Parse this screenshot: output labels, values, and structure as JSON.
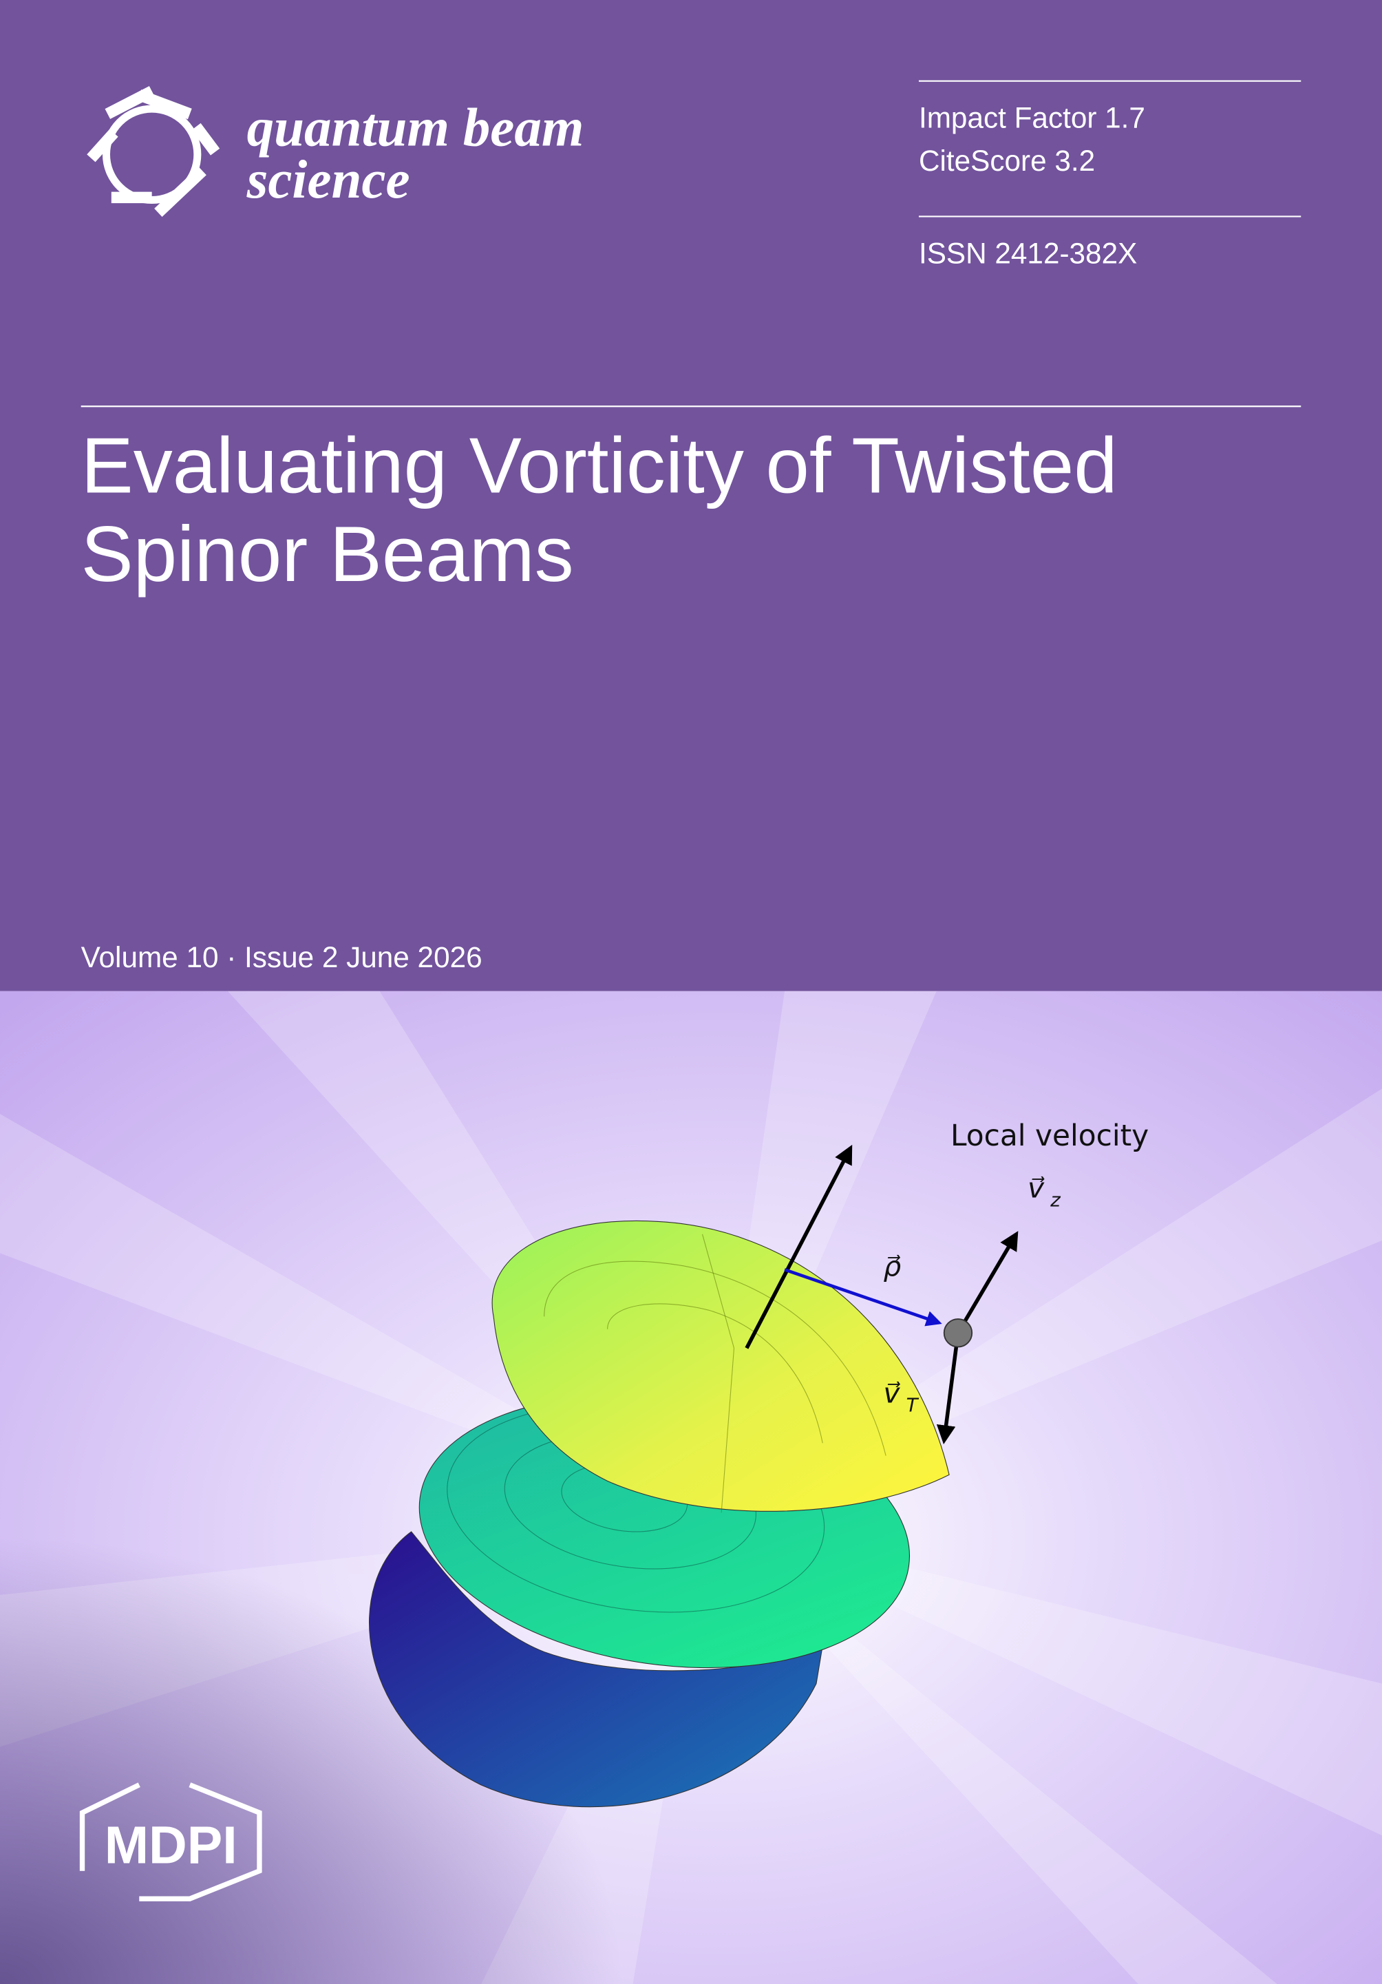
{
  "journal": {
    "name_line1": "quantum beam",
    "name_line2": "science"
  },
  "metrics": {
    "impact_factor": "Impact Factor 1.7",
    "citescore": "CiteScore 3.2",
    "issn": "ISSN 2412-382X"
  },
  "article": {
    "title_line1": "Evaluating Vorticity of Twisted",
    "title_line2": "Spinor Beams"
  },
  "issue": "Volume 10 · Issue 2 June 2026",
  "figure": {
    "caption": "Local velocity",
    "rho": "ρ⃗",
    "vz": {
      "symbol": "v⃗",
      "subscript": "z"
    },
    "vt": {
      "symbol": "v⃗",
      "subscript": "T"
    }
  },
  "publisher": "MDPI"
}
